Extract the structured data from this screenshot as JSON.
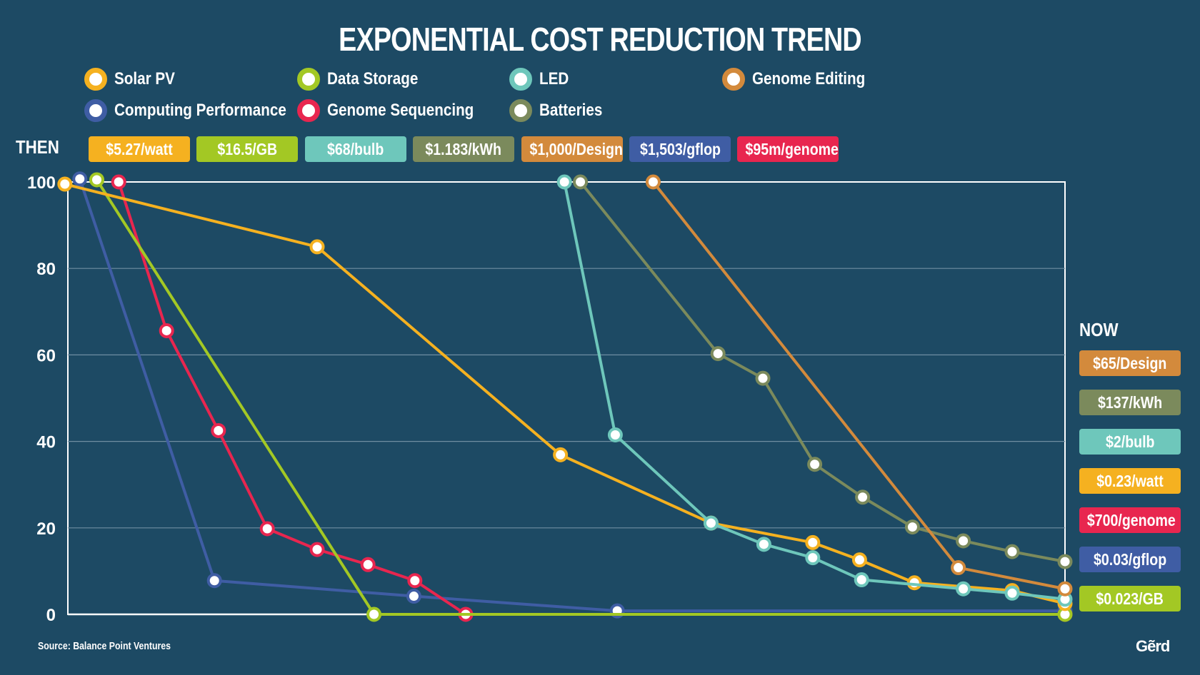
{
  "title": "EXPONENTIAL COST REDUCTION TREND",
  "then_label": "THEN",
  "now_label": "NOW",
  "source": "Source: Balance Point Ventures",
  "logo": "Gẽrd",
  "legend": [
    {
      "label": "Solar PV",
      "color": "#f5b120"
    },
    {
      "label": "Data Storage",
      "color": "#a3c824"
    },
    {
      "label": "LED",
      "color": "#6ec7bb"
    },
    {
      "label": "Genome Editing",
      "color": "#d38a3c"
    },
    {
      "label": "Computing Performance",
      "color": "#3f5da4"
    },
    {
      "label": "Genome Sequencing",
      "color": "#e8264f"
    },
    {
      "label": "Batteries",
      "color": "#7b8a5c"
    }
  ],
  "then_badges": [
    {
      "label": "$5.27/watt",
      "color": "#f5b120"
    },
    {
      "label": "$16.5/GB",
      "color": "#a3c824"
    },
    {
      "label": "$68/bulb",
      "color": "#6ec7bb"
    },
    {
      "label": "$1.183/kWh",
      "color": "#7b8a5c"
    },
    {
      "label": "$1,000/Design",
      "color": "#d38a3c"
    },
    {
      "label": "$1,503/gflop",
      "color": "#3f5da4"
    },
    {
      "label": "$95m/genome",
      "color": "#e8264f"
    }
  ],
  "now_badges": [
    {
      "label": "$65/Design",
      "color": "#d38a3c"
    },
    {
      "label": "$137/kWh",
      "color": "#7b8a5c"
    },
    {
      "label": "$2/bulb",
      "color": "#6ec7bb"
    },
    {
      "label": "$0.23/watt",
      "color": "#f5b120"
    },
    {
      "label": "$700/genome",
      "color": "#e8264f"
    },
    {
      "label": "$0.03/gflop",
      "color": "#3f5da4"
    },
    {
      "label": "$0.023/GB",
      "color": "#a3c824"
    }
  ],
  "chart_data": {
    "type": "line",
    "title": "EXPONENTIAL COST REDUCTION TREND",
    "xlabel": "",
    "ylabel": "",
    "xlim": [
      0,
      1
    ],
    "ylim": [
      0,
      100
    ],
    "yticks": [
      "0",
      "20",
      "40",
      "60",
      "80",
      "100"
    ],
    "grid": true,
    "legend_position": "top",
    "series": [
      {
        "name": "Computing Performance",
        "color": "#3f5da4",
        "x": [
          0.012,
          0.147,
          0.347,
          0.551,
          1.0
        ],
        "y": [
          100.7,
          7.8,
          4.2,
          0.8,
          0.8
        ]
      },
      {
        "name": "Genome Sequencing",
        "color": "#e8264f",
        "x": [
          0.051,
          0.099,
          0.151,
          0.2,
          0.25,
          0.301,
          0.348,
          0.399,
          1.0
        ],
        "y": [
          100,
          65.6,
          42.5,
          19.8,
          15,
          11.5,
          7.8,
          0,
          0
        ]
      },
      {
        "name": "Data Storage",
        "color": "#a3c824",
        "x": [
          0.029,
          0.307,
          1.0
        ],
        "y": [
          100.5,
          0,
          0
        ]
      },
      {
        "name": "Solar PV",
        "color": "#f5b120",
        "x": [
          -0.003,
          0.25,
          0.494,
          0.645,
          0.747,
          0.794,
          0.849,
          0.947,
          1.0
        ],
        "y": [
          99.5,
          85,
          36.9,
          21.1,
          16.6,
          12.6,
          7.3,
          5.5,
          2.5
        ]
      },
      {
        "name": "LED",
        "color": "#6ec7bb",
        "x": [
          0.498,
          0.549,
          0.645,
          0.698,
          0.747,
          0.796,
          0.898,
          0.947,
          1.0
        ],
        "y": [
          100,
          41.5,
          21.1,
          16.2,
          13.1,
          8,
          5.9,
          4.9,
          3.5
        ]
      },
      {
        "name": "Batteries",
        "color": "#7b8a5c",
        "x": [
          0.514,
          0.652,
          0.697,
          0.749,
          0.797,
          0.847,
          0.898,
          0.947,
          1.0
        ],
        "y": [
          100,
          60.3,
          54.6,
          34.7,
          27.1,
          20.2,
          17,
          14.5,
          12.2
        ]
      },
      {
        "name": "Genome Editing",
        "color": "#d38a3c",
        "x": [
          0.587,
          0.893,
          1.0
        ],
        "y": [
          100,
          10.8,
          5.9
        ]
      }
    ]
  }
}
